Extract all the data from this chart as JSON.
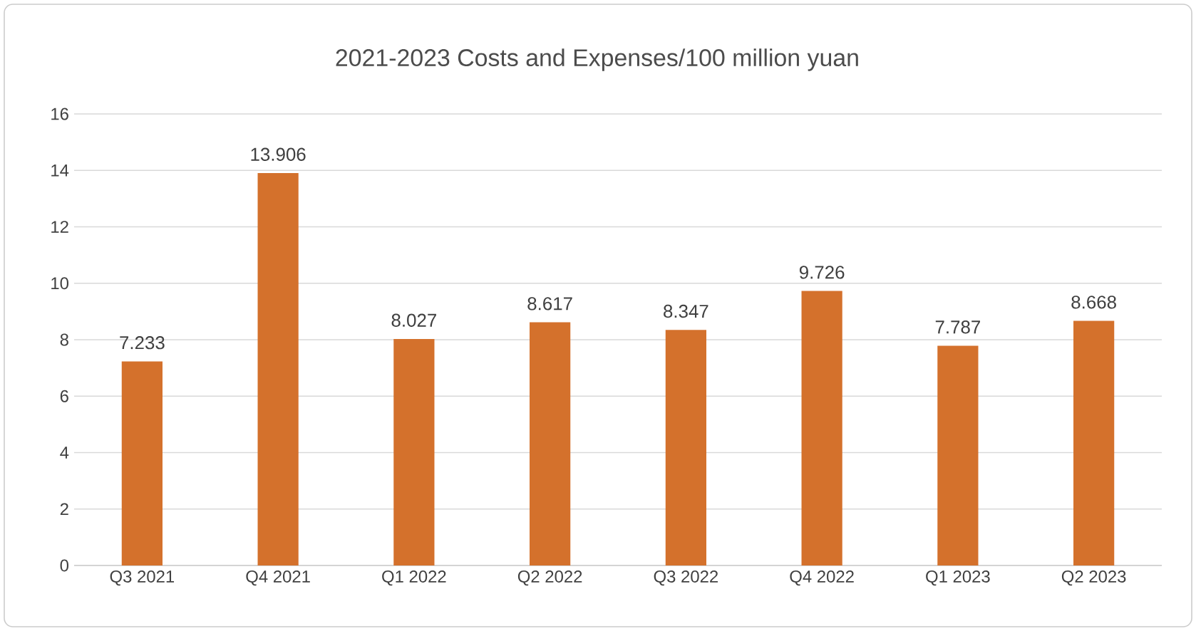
{
  "chart_data": {
    "type": "bar",
    "title": "2021-2023 Costs and Expenses/100 million yuan",
    "categories": [
      "Q3 2021",
      "Q4 2021",
      "Q1 2022",
      "Q2 2022",
      "Q3 2022",
      "Q4 2022",
      "Q1 2023",
      "Q2 2023"
    ],
    "values": [
      7.233,
      13.906,
      8.027,
      8.617,
      8.347,
      9.726,
      7.787,
      8.668
    ],
    "value_labels": [
      "7.233",
      "13.906",
      "8.027",
      "8.617",
      "8.347",
      "9.726",
      "7.787",
      "8.668"
    ],
    "color": "#d4712c",
    "ylim": [
      0,
      16
    ],
    "yticks": [
      0,
      2,
      4,
      6,
      8,
      10,
      12,
      14,
      16
    ],
    "grid": "y"
  }
}
